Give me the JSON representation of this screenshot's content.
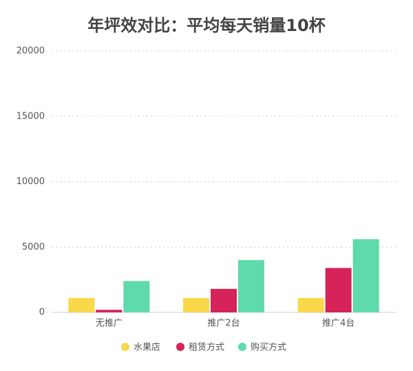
{
  "chart_data": {
    "type": "bar",
    "title": "年坪效对比：平均每天销量10杯",
    "categories": [
      "无推广",
      "推广2台",
      "推广4台"
    ],
    "series": [
      {
        "name": "水果店",
        "color": "#f9d84a",
        "values": [
          1100,
          1100,
          1100
        ]
      },
      {
        "name": "租赁方式",
        "color": "#d6245a",
        "values": [
          200,
          1800,
          3400
        ]
      },
      {
        "name": "购买方式",
        "color": "#5fdaaa",
        "values": [
          2400,
          4000,
          5600
        ]
      }
    ],
    "ylim": [
      0,
      20000
    ],
    "yticks": [
      0,
      5000,
      10000,
      15000,
      20000
    ],
    "grid": true
  }
}
